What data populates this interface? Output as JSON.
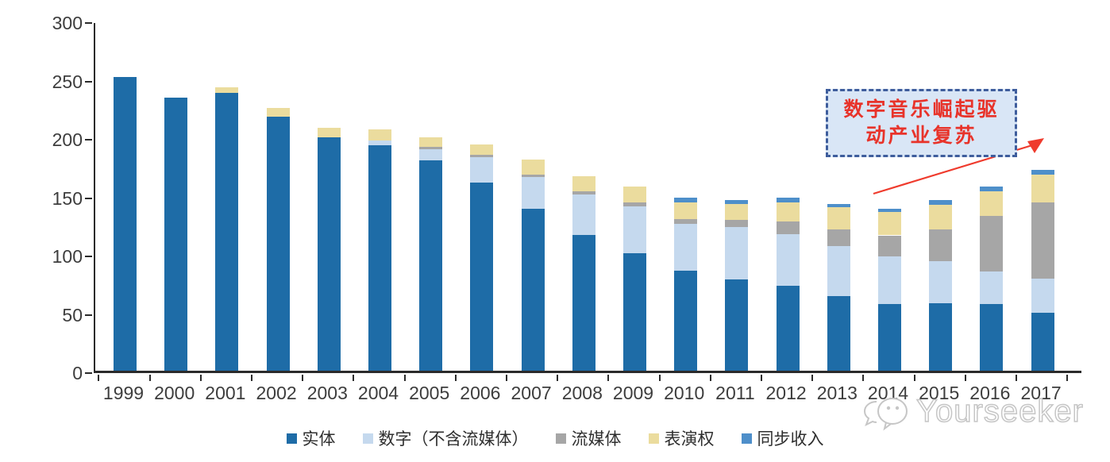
{
  "chart_data": {
    "type": "bar",
    "stacked": true,
    "title": "",
    "xlabel": "",
    "ylabel": "",
    "ylim": [
      0,
      300
    ],
    "yticks": [
      0,
      50,
      100,
      150,
      200,
      250,
      300
    ],
    "grid": false,
    "legend_position": "bottom",
    "categories": [
      "1999",
      "2000",
      "2001",
      "2002",
      "2003",
      "2004",
      "2005",
      "2006",
      "2007",
      "2008",
      "2009",
      "2010",
      "2011",
      "2012",
      "2013",
      "2014",
      "2015",
      "2016",
      "2017"
    ],
    "series": [
      {
        "name": "实体",
        "color": "#1e6ca7",
        "values": [
          252,
          234,
          238,
          218,
          200,
          193,
          180,
          161,
          139,
          116,
          101,
          86,
          78,
          73,
          64,
          57,
          58,
          57,
          50
        ]
      },
      {
        "name": "数字（不含流媒体）",
        "color": "#c5d9ee",
        "values": [
          0,
          0,
          0,
          0,
          0,
          4,
          10,
          22,
          27,
          35,
          40,
          40,
          45,
          44,
          43,
          41,
          36,
          28,
          29
        ]
      },
      {
        "name": "流媒体",
        "color": "#a6a6a6",
        "values": [
          0,
          0,
          0,
          0,
          0,
          0,
          2,
          2,
          2,
          3,
          3,
          4,
          6,
          11,
          14,
          18,
          27,
          48,
          65
        ]
      },
      {
        "name": "表演权",
        "color": "#ebdc9e",
        "values": [
          0,
          0,
          5,
          7,
          8,
          10,
          8,
          9,
          13,
          13,
          14,
          14,
          14,
          16,
          19,
          20,
          21,
          21,
          24
        ]
      },
      {
        "name": "同步收入",
        "color": "#4e8fca",
        "values": [
          0,
          0,
          0,
          0,
          0,
          0,
          0,
          0,
          0,
          0,
          0,
          4,
          3,
          4,
          3,
          3,
          4,
          4,
          4
        ]
      }
    ]
  },
  "annotation": {
    "line1": "数字音乐崛起驱",
    "line2": "动产业复苏",
    "text_color": "#e8332a",
    "box_fill": "#d9e6f6",
    "box_border": "#3e5d9c",
    "arrow_color": "#ef3b2d"
  },
  "watermark": {
    "text": "Yourseeker"
  }
}
